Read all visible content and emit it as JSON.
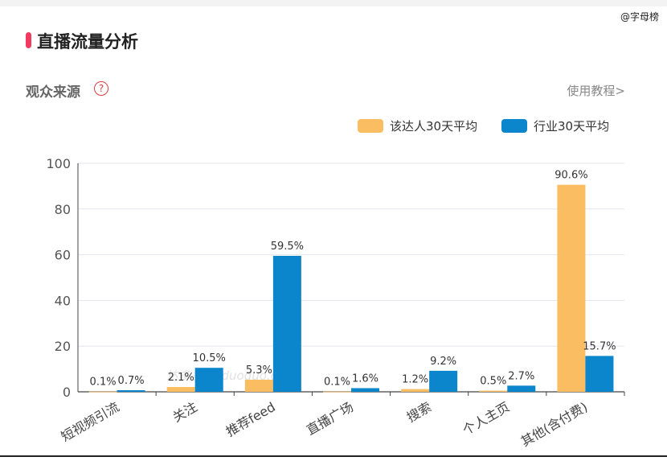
{
  "header": {
    "watermark": "@字母榜",
    "title": "直播流量分析",
    "subtitle": "观众来源",
    "help_icon": "?",
    "tutorial_link": "使用教程>"
  },
  "colors": {
    "accent": "#f23a5e",
    "creator": "#fbbd61",
    "industry": "#0b85cc"
  },
  "chart_data": {
    "type": "bar",
    "categories": [
      "短视频引流",
      "关注",
      "推荐feed",
      "直播广场",
      "搜索",
      "个人主页",
      "其他(含付费)"
    ],
    "series": [
      {
        "name": "该达人30天平均",
        "values": [
          0.1,
          2.1,
          5.3,
          0.1,
          1.2,
          0.5,
          90.6
        ],
        "labels": [
          "0.1%",
          "2.1%",
          "5.3%",
          "0.1%",
          "1.2%",
          "0.5%",
          "90.6%"
        ]
      },
      {
        "name": "行业30天平均",
        "values": [
          0.7,
          10.5,
          59.5,
          1.6,
          9.2,
          2.7,
          15.7
        ],
        "labels": [
          "0.7%",
          "10.5%",
          "59.5%",
          "1.6%",
          "9.2%",
          "2.7%",
          "15.7%"
        ]
      }
    ],
    "ylim": [
      0,
      100
    ],
    "yticks": [
      "0",
      "20",
      "40",
      "60",
      "80",
      "100"
    ],
    "grid": true,
    "legend": "top-right",
    "watermark": "达多多 daduoduo.com"
  }
}
